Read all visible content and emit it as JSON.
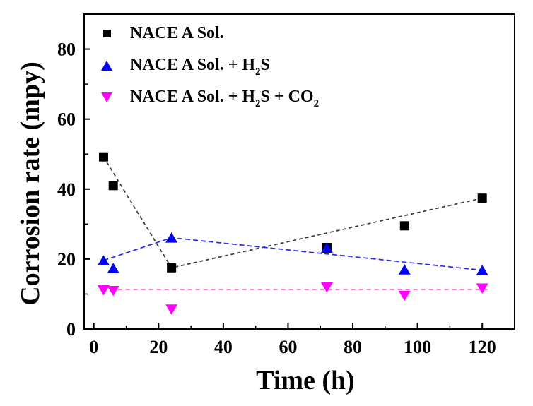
{
  "chart_data": {
    "type": "scatter",
    "title": "",
    "xlabel": "Time (h)",
    "ylabel": "Corrosion rate (mpy)",
    "xlim": [
      -3,
      130
    ],
    "ylim": [
      0,
      90
    ],
    "xticks": [
      0,
      20,
      40,
      60,
      80,
      100,
      120
    ],
    "yticks": [
      0,
      20,
      40,
      60,
      80
    ],
    "minor_tick_step": 10,
    "grid": false,
    "legend_position": "top-left-inside",
    "x_hours": [
      3,
      6,
      24,
      72,
      96,
      120
    ],
    "series": [
      {
        "name": "NACE A Sol.",
        "marker": "square",
        "color": "#000000",
        "values": [
          49.2,
          41.0,
          17.5,
          23.3,
          29.5,
          37.4
        ],
        "trend_points": [
          [
            3,
            49.2
          ],
          [
            24,
            17.5
          ],
          [
            120,
            37.4
          ]
        ],
        "trend_color": "#3a3a3a",
        "trend_dash": "5 4",
        "label_parts": [
          {
            "text": "NACE A Sol."
          }
        ]
      },
      {
        "name": "NACE A Sol. + H2S",
        "marker": "triangle-up",
        "color": "#0202f5",
        "values": [
          19.6,
          17.4,
          26.1,
          23.2,
          17.0,
          16.8
        ],
        "trend_points": [
          [
            3,
            19.6
          ],
          [
            24,
            26.1
          ],
          [
            120,
            16.8
          ]
        ],
        "trend_color": "#2a2af0",
        "trend_dash": "7 4",
        "label_parts": [
          {
            "text": "NACE A Sol. + H"
          },
          {
            "text": "2",
            "sub": true
          },
          {
            "text": "S"
          }
        ]
      },
      {
        "name": "NACE A Sol. + H2S + CO2",
        "marker": "triangle-down",
        "color": "#ff00ff",
        "values": [
          11.1,
          10.9,
          5.6,
          11.9,
          9.5,
          11.6
        ],
        "trend_points": [
          [
            5,
            11.3
          ],
          [
            122,
            11.3
          ]
        ],
        "trend_color": "#ff63d8",
        "trend_dash": "6 5",
        "label_parts": [
          {
            "text": "NACE A Sol. + H"
          },
          {
            "text": "2",
            "sub": true
          },
          {
            "text": "S + CO"
          },
          {
            "text": "2",
            "sub": true
          }
        ]
      }
    ]
  }
}
